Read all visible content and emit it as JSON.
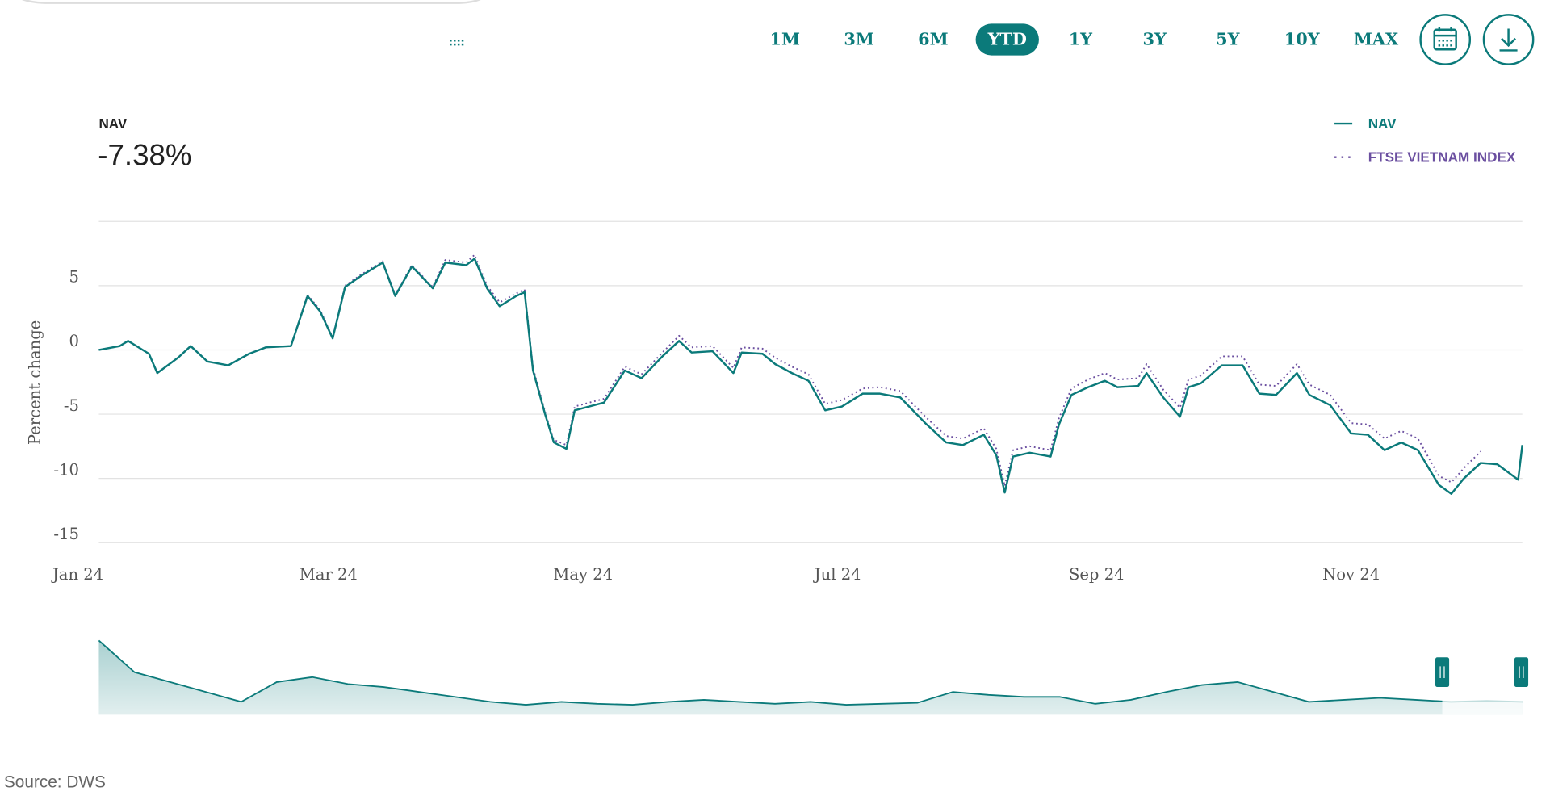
{
  "range_buttons": [
    "1M",
    "3M",
    "6M",
    "YTD",
    "1Y",
    "3Y",
    "5Y",
    "10Y",
    "MAX"
  ],
  "header": {
    "label": "NAV",
    "value": "-7.38%"
  },
  "source": "Source: DWS",
  "chart_data": [
    {
      "type": "line",
      "y_label": "Percent change",
      "grid": true,
      "ylim": [
        -15,
        10
      ],
      "yticks": [
        -15,
        -10,
        -5,
        0,
        5
      ],
      "xlim": [
        5,
        346
      ],
      "xticks": [
        {
          "value": 0,
          "label": "Jan 24"
        },
        {
          "value": 60,
          "label": "Mar 24"
        },
        {
          "value": 121,
          "label": "May 24"
        },
        {
          "value": 182,
          "label": "Jul 24"
        },
        {
          "value": 244,
          "label": "Sep 24"
        },
        {
          "value": 305,
          "label": "Nov 24"
        }
      ],
      "x": [
        5,
        10,
        12,
        17,
        19,
        24,
        27,
        31,
        36,
        41,
        45,
        51,
        55,
        58,
        61,
        64,
        68,
        73,
        76,
        80,
        85,
        88,
        93,
        95,
        98,
        101,
        105,
        107,
        109,
        112,
        114,
        117,
        119,
        126,
        131,
        135,
        140,
        144,
        147,
        152,
        157,
        159,
        164,
        167,
        171,
        175,
        179,
        183,
        188,
        192,
        197,
        203,
        208,
        212,
        217,
        220,
        222,
        224,
        228,
        233,
        235,
        238,
        242,
        246,
        249,
        254,
        256,
        260,
        264,
        266,
        269,
        274,
        279,
        283,
        287,
        292,
        295,
        300,
        305,
        309,
        313,
        317,
        321,
        326,
        329,
        332,
        336,
        340,
        345,
        346
      ],
      "series": [
        {
          "name": "NAV",
          "color": "#0b7a7a",
          "style": "solid",
          "values": [
            0,
            0.3,
            0.7,
            -0.3,
            -1.8,
            -0.6,
            0.3,
            -0.9,
            -1.2,
            -0.3,
            0.2,
            0.3,
            4.2,
            3.0,
            0.9,
            4.9,
            5.8,
            6.8,
            4.2,
            6.5,
            4.8,
            6.8,
            6.6,
            7.1,
            4.8,
            3.4,
            4.2,
            4.5,
            -1.6,
            -5.1,
            -7.2,
            -7.7,
            -4.7,
            -4.1,
            -1.6,
            -2.2,
            -0.5,
            0.7,
            -0.2,
            -0.1,
            -1.8,
            -0.2,
            -0.3,
            -1.1,
            -1.8,
            -2.4,
            -4.7,
            -4.4,
            -3.4,
            -3.4,
            -3.7,
            -5.7,
            -7.2,
            -7.4,
            -6.6,
            -8.2,
            -11.1,
            -8.3,
            -8.0,
            -8.3,
            -5.8,
            -3.5,
            -2.9,
            -2.4,
            -2.9,
            -2.8,
            -1.8,
            -3.7,
            -5.2,
            -2.9,
            -2.6,
            -1.2,
            -1.2,
            -3.4,
            -3.5,
            -1.8,
            -3.5,
            -4.3,
            -6.5,
            -6.6,
            -7.8,
            -7.2,
            -7.8,
            -10.5,
            -11.2,
            -10.0,
            -8.8,
            -8.9,
            -10.1,
            -7.4
          ]
        },
        {
          "name": "FTSE VIETNAM INDEX",
          "color": "#6b4fa0",
          "style": "dotted",
          "values": [
            0,
            0.3,
            0.7,
            -0.3,
            -1.8,
            -0.6,
            0.3,
            -0.9,
            -1.2,
            -0.3,
            0.2,
            0.3,
            4.3,
            3.1,
            1.0,
            5.0,
            5.9,
            6.9,
            4.3,
            6.6,
            4.9,
            7.0,
            6.8,
            7.4,
            5.0,
            3.7,
            4.4,
            4.7,
            -1.4,
            -4.9,
            -7.0,
            -7.4,
            -4.4,
            -3.8,
            -1.3,
            -1.9,
            -0.2,
            1.1,
            0.2,
            0.3,
            -1.4,
            0.2,
            0.1,
            -0.6,
            -1.3,
            -1.9,
            -4.2,
            -3.9,
            -3.0,
            -2.9,
            -3.2,
            -5.2,
            -6.7,
            -6.9,
            -6.1,
            -7.7,
            -10.6,
            -7.8,
            -7.5,
            -7.8,
            -5.3,
            -3.0,
            -2.3,
            -1.8,
            -2.3,
            -2.2,
            -1.1,
            -3.1,
            -4.5,
            -2.3,
            -2.0,
            -0.5,
            -0.5,
            -2.7,
            -2.8,
            -1.1,
            -2.7,
            -3.5,
            -5.7,
            -5.8,
            -6.9,
            -6.3,
            -6.9,
            -9.8,
            -10.3,
            -9.2,
            -7.9,
            null,
            null,
            null
          ]
        }
      ]
    },
    {
      "type": "area",
      "color": "#0b7a7a",
      "ylim": [
        0,
        85
      ],
      "values": [
        75,
        43,
        33,
        23,
        13,
        33,
        38,
        31,
        28,
        23,
        18,
        13,
        10,
        13,
        11,
        10,
        13,
        15,
        13,
        11,
        13,
        10,
        11,
        12,
        23,
        20,
        18,
        18,
        11,
        15,
        23,
        30,
        33,
        23,
        13,
        15,
        17,
        15,
        13,
        14,
        13
      ]
    }
  ]
}
